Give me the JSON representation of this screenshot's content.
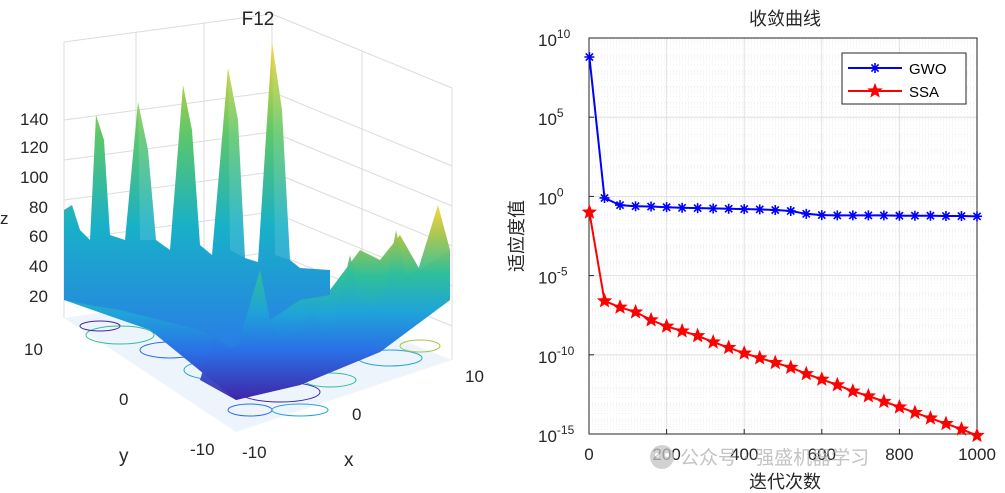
{
  "surface_panel": {
    "title": "F12",
    "xlabel": "x",
    "ylabel": "y",
    "zlabel": "z",
    "z_ticks": [
      "20",
      "40",
      "60",
      "80",
      "100",
      "120",
      "140"
    ],
    "x_ticks": [
      "-10",
      "0",
      "10"
    ],
    "y_ticks": [
      "10",
      "0",
      "-10"
    ]
  },
  "chart_data": {
    "type": "line",
    "yscale": "log",
    "title": "收敛曲线",
    "xlabel": "迭代次数",
    "ylabel": "适应度值",
    "xlim": [
      0,
      1000
    ],
    "ylim_exponent": [
      -15,
      10
    ],
    "x_ticks": [
      "0",
      "200",
      "400",
      "600",
      "800",
      "1000"
    ],
    "y_tick_exponents": [
      "10",
      "5",
      "0",
      "-5",
      "-10",
      "-15"
    ],
    "y_tick_base": "10",
    "legend_position": "top-right",
    "series": [
      {
        "name": "GWO",
        "color": "#0000ff",
        "marker": "asterisk",
        "x": [
          1,
          40,
          80,
          120,
          160,
          200,
          240,
          280,
          320,
          360,
          400,
          440,
          480,
          520,
          560,
          600,
          640,
          680,
          720,
          760,
          800,
          840,
          880,
          920,
          960,
          1000
        ],
        "log10_y": [
          8.8,
          -0.1,
          -0.55,
          -0.62,
          -0.64,
          -0.68,
          -0.72,
          -0.74,
          -0.76,
          -0.78,
          -0.8,
          -0.82,
          -0.86,
          -0.92,
          -1.1,
          -1.18,
          -1.2,
          -1.2,
          -1.2,
          -1.2,
          -1.22,
          -1.22,
          -1.22,
          -1.24,
          -1.24,
          -1.26
        ]
      },
      {
        "name": "SSA",
        "color": "#ff0000",
        "marker": "pentagram",
        "x": [
          1,
          40,
          80,
          120,
          160,
          200,
          240,
          280,
          320,
          360,
          400,
          440,
          480,
          520,
          560,
          600,
          640,
          680,
          720,
          760,
          800,
          840,
          880,
          920,
          960,
          1000
        ],
        "log10_y": [
          -1.0,
          -6.6,
          -7.0,
          -7.3,
          -7.8,
          -8.2,
          -8.5,
          -8.8,
          -9.2,
          -9.55,
          -9.9,
          -10.2,
          -10.5,
          -10.8,
          -11.2,
          -11.55,
          -11.9,
          -12.3,
          -12.6,
          -12.95,
          -13.3,
          -13.65,
          -14.0,
          -14.35,
          -14.7,
          -15.1
        ]
      }
    ]
  },
  "watermark": "公众号 · 强盛机器学习"
}
